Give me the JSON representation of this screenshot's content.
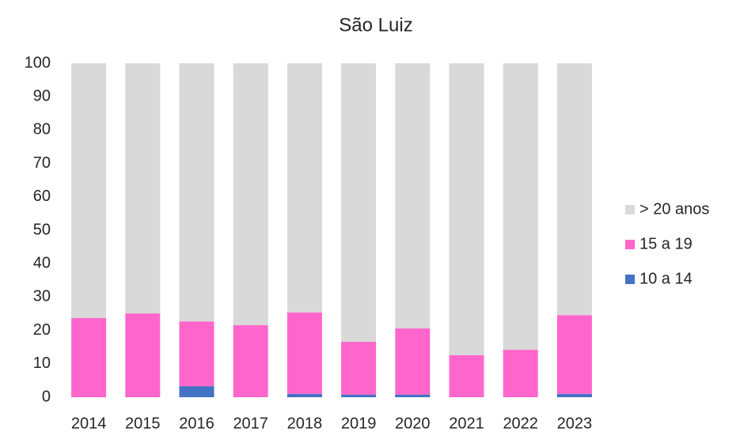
{
  "chart_data": {
    "type": "stacked_bar",
    "title": "São Luiz",
    "categories": [
      "2014",
      "2015",
      "2016",
      "2017",
      "2018",
      "2019",
      "2020",
      "2021",
      "2022",
      "2023"
    ],
    "series": [
      {
        "name": "10 a 14",
        "color": "#4472c4",
        "values": [
          0,
          0,
          3.3,
          0,
          1,
          0.8,
          0.8,
          0,
          0,
          1
        ]
      },
      {
        "name": "15 a 19",
        "color": "#ff66cc",
        "values": [
          23.7,
          25.1,
          19.4,
          21.6,
          24.4,
          15.8,
          19.8,
          12.6,
          14.2,
          23.6
        ]
      },
      {
        "name": "> 20 anos",
        "color": "#d9d9d9",
        "values": [
          76.3,
          74.9,
          77.3,
          78.4,
          74.6,
          83.4,
          79.4,
          87.4,
          85.8,
          75.4
        ]
      }
    ],
    "ylim": [
      0,
      100
    ],
    "yticks": [
      0,
      10,
      20,
      30,
      40,
      50,
      60,
      70,
      80,
      90,
      100
    ],
    "legend": "right"
  }
}
